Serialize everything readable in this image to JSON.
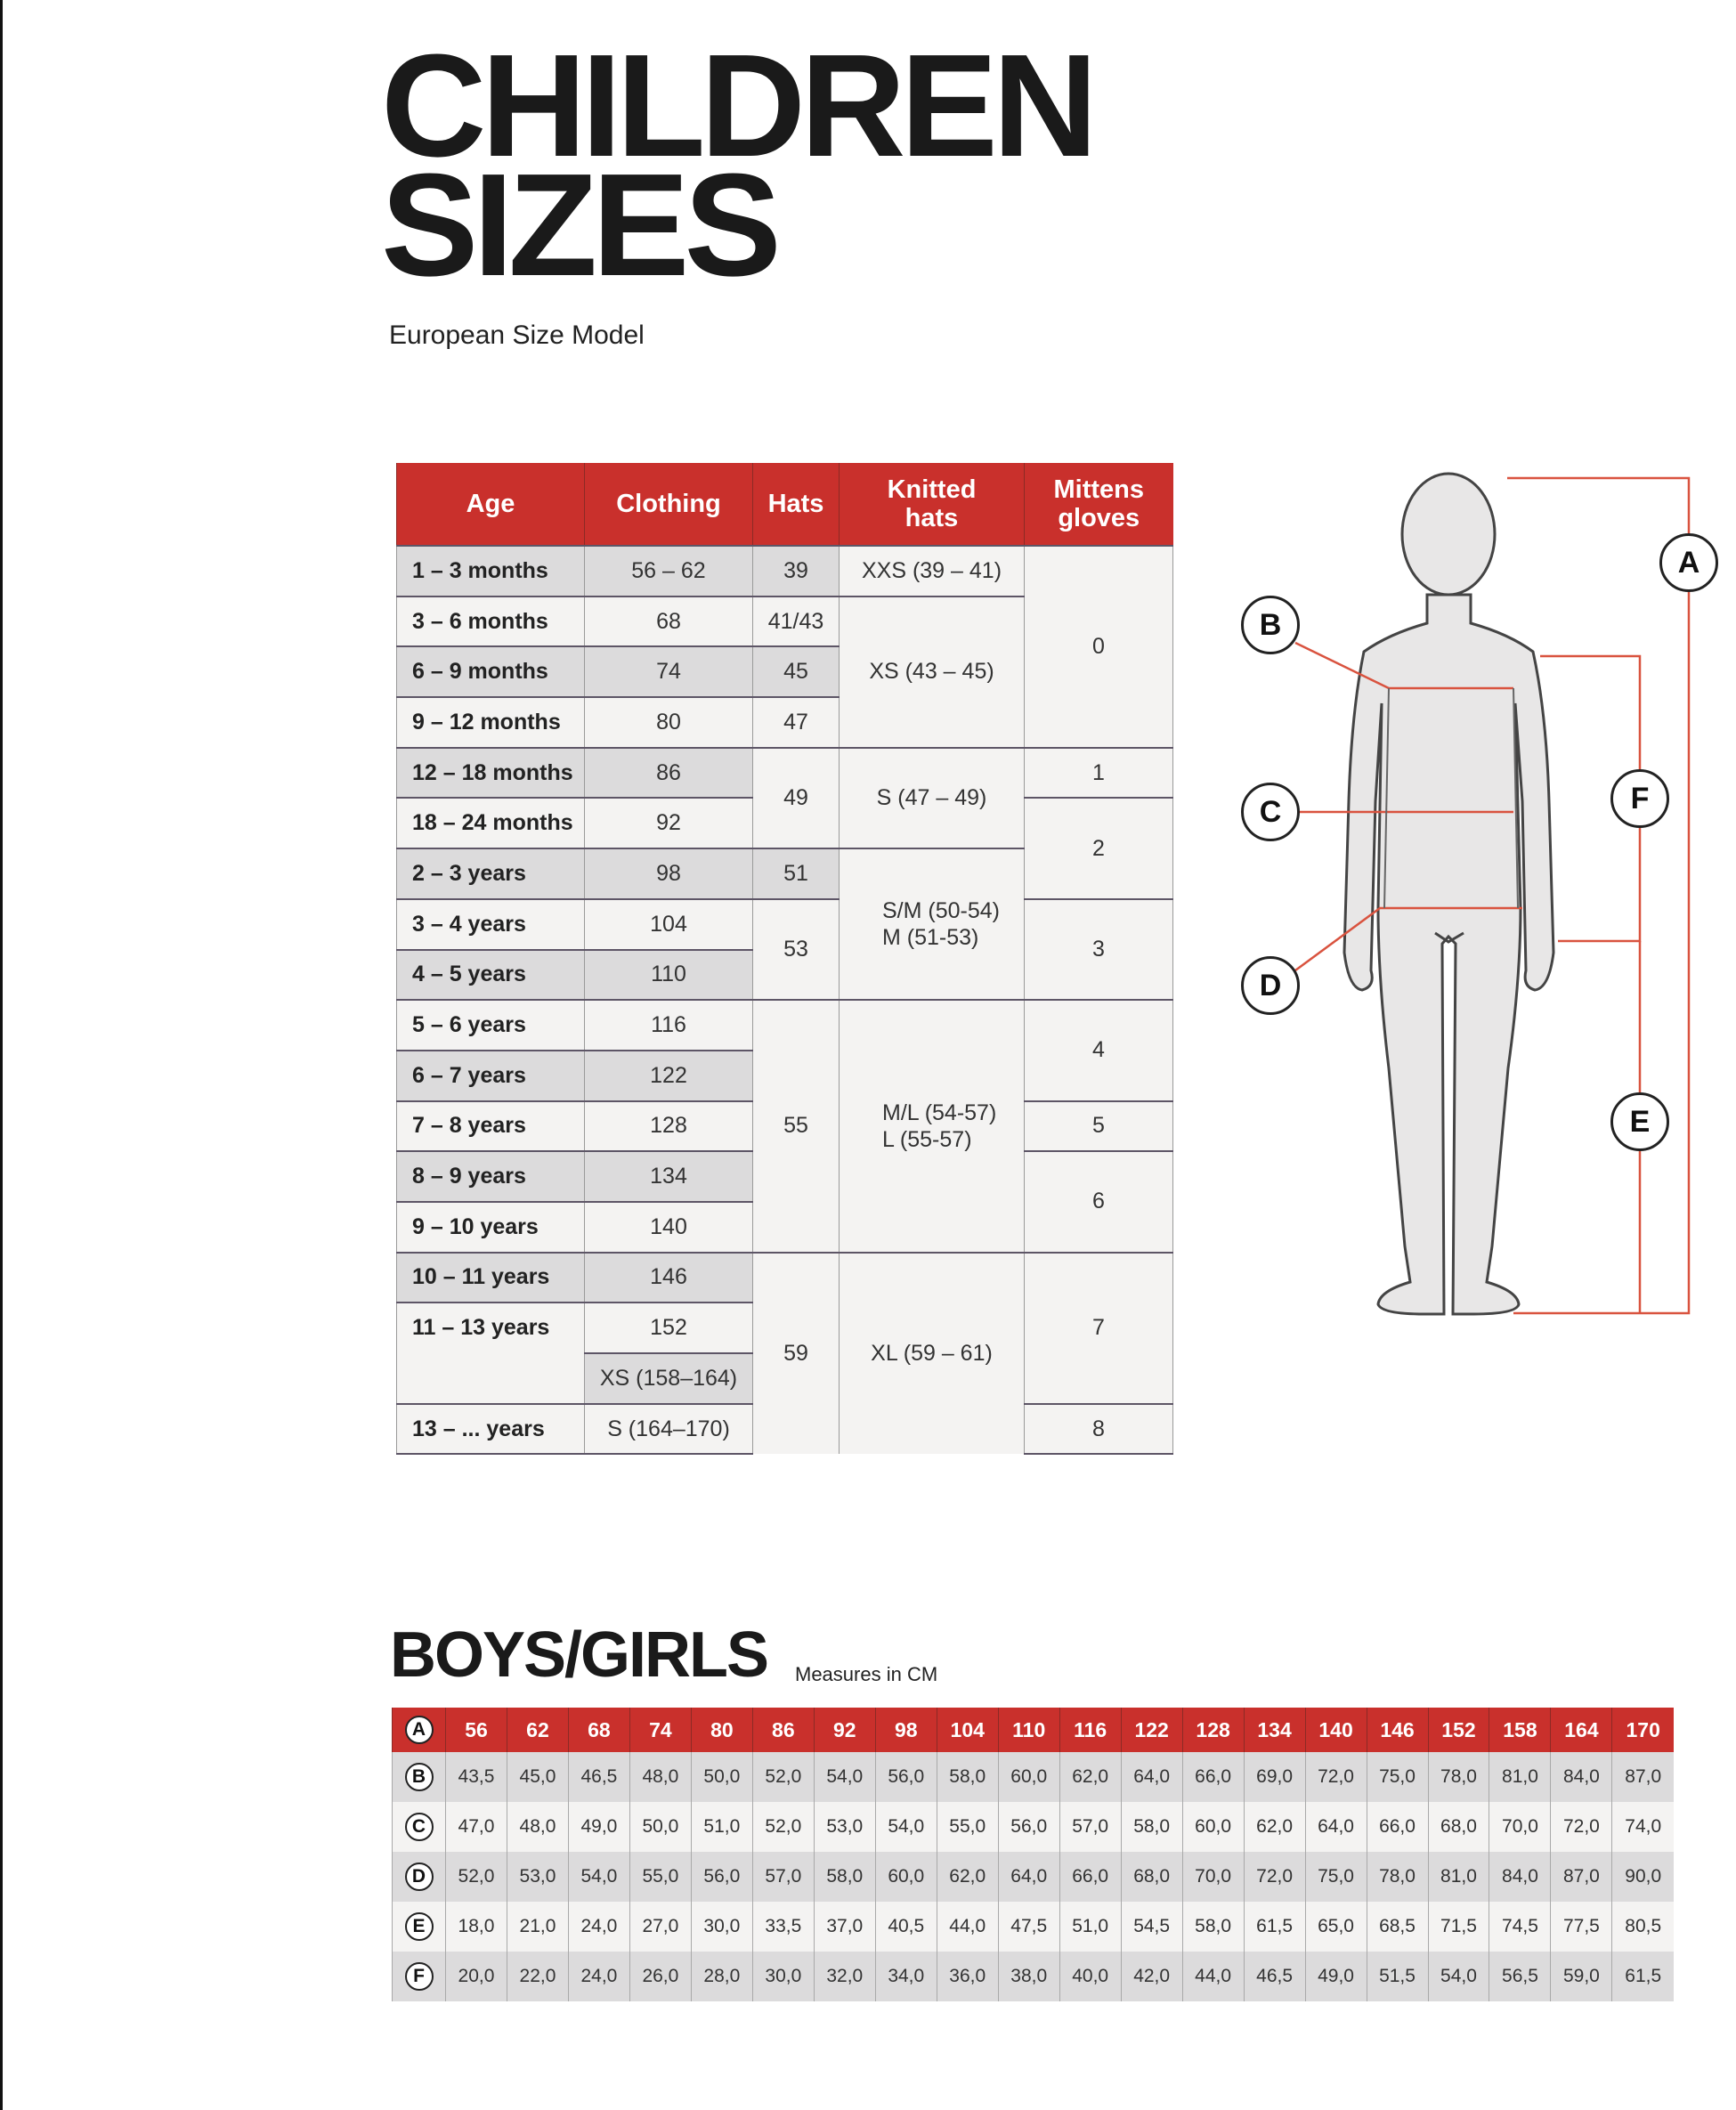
{
  "header": {
    "title_line1": "CHILDREN",
    "title_line2": "SIZES",
    "subtitle": "European Size Model"
  },
  "size_table": {
    "columns": [
      "Age",
      "Clothing",
      "Hats",
      "Knitted hats",
      "Mittens gloves"
    ],
    "ages": [
      "1 – 3 months",
      "3 – 6 months",
      "6 – 9 months",
      "9 – 12 months",
      "12 – 18 months",
      "18 – 24 months",
      "2 – 3 years",
      "3 – 4 years",
      "4 – 5 years",
      "5 – 6 years",
      "6 – 7 years",
      "7 – 8 years",
      "8 – 9 years",
      "9 – 10 years",
      "10 – 11 years",
      "11 – 13 years",
      "13 – ... years"
    ],
    "clothing": [
      "56 – 62",
      "68",
      "74",
      "80",
      "86",
      "92",
      "98",
      "104",
      "110",
      "116",
      "122",
      "128",
      "134",
      "140",
      "146",
      "152",
      "XS (158–164)",
      "S (164–170)"
    ],
    "hats": [
      "39",
      "41/43",
      "45",
      "47",
      "49",
      "51",
      "53",
      "55",
      "59"
    ],
    "knitted_hats": [
      "XXS (39 – 41)",
      "XS (43 – 45)",
      "S (47 – 49)",
      "S/M (50-54)\nM (51-53)",
      "M/L (54-57)\nL (55-57)",
      "XL (59 – 61)"
    ],
    "mittens": [
      "0",
      "1",
      "2",
      "3",
      "4",
      "5",
      "6",
      "7",
      "8"
    ]
  },
  "figure": {
    "labels": [
      "A",
      "B",
      "C",
      "D",
      "E",
      "F"
    ],
    "line_color": "#d9533f"
  },
  "measures": {
    "title": "BOYS/GIRLS",
    "unit": "Measures in CM",
    "rows": [
      {
        "label": "A",
        "values": [
          "56",
          "62",
          "68",
          "74",
          "80",
          "86",
          "92",
          "98",
          "104",
          "110",
          "116",
          "122",
          "128",
          "134",
          "140",
          "146",
          "152",
          "158",
          "164",
          "170"
        ]
      },
      {
        "label": "B",
        "values": [
          "43,5",
          "45,0",
          "46,5",
          "48,0",
          "50,0",
          "52,0",
          "54,0",
          "56,0",
          "58,0",
          "60,0",
          "62,0",
          "64,0",
          "66,0",
          "69,0",
          "72,0",
          "75,0",
          "78,0",
          "81,0",
          "84,0",
          "87,0"
        ]
      },
      {
        "label": "C",
        "values": [
          "47,0",
          "48,0",
          "49,0",
          "50,0",
          "51,0",
          "52,0",
          "53,0",
          "54,0",
          "55,0",
          "56,0",
          "57,0",
          "58,0",
          "60,0",
          "62,0",
          "64,0",
          "66,0",
          "68,0",
          "70,0",
          "72,0",
          "74,0"
        ]
      },
      {
        "label": "D",
        "values": [
          "52,0",
          "53,0",
          "54,0",
          "55,0",
          "56,0",
          "57,0",
          "58,0",
          "60,0",
          "62,0",
          "64,0",
          "66,0",
          "68,0",
          "70,0",
          "72,0",
          "75,0",
          "78,0",
          "81,0",
          "84,0",
          "87,0",
          "90,0"
        ]
      },
      {
        "label": "E",
        "values": [
          "18,0",
          "21,0",
          "24,0",
          "27,0",
          "30,0",
          "33,5",
          "37,0",
          "40,5",
          "44,0",
          "47,5",
          "51,0",
          "54,5",
          "58,0",
          "61,5",
          "65,0",
          "68,5",
          "71,5",
          "74,5",
          "77,5",
          "80,5"
        ]
      },
      {
        "label": "F",
        "values": [
          "20,0",
          "22,0",
          "24,0",
          "26,0",
          "28,0",
          "30,0",
          "32,0",
          "34,0",
          "36,0",
          "38,0",
          "40,0",
          "42,0",
          "44,0",
          "46,5",
          "49,0",
          "51,5",
          "54,0",
          "56,5",
          "59,0",
          "61,5"
        ]
      }
    ]
  },
  "colors": {
    "accent": "#c9302c",
    "row_shade": "#dcdbdc",
    "row_light": "#f4f3f2"
  }
}
